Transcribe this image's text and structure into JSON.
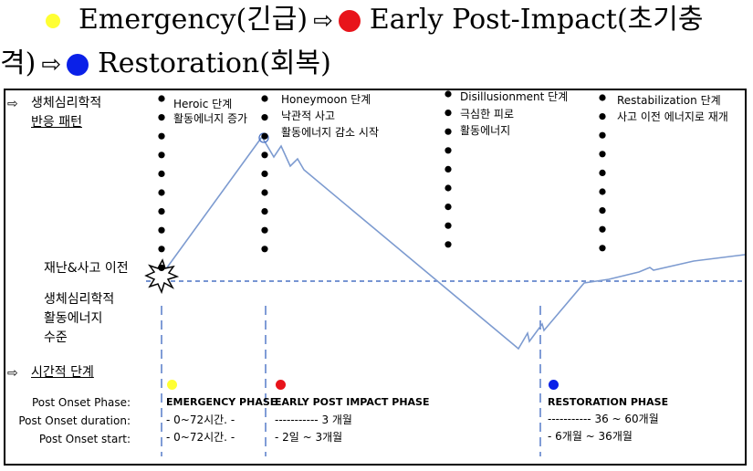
{
  "heading": {
    "line1_a": "Emergency(긴급)",
    "arrow": "⇨",
    "line1_b": "Early Post-Impact(초기충",
    "line2_a": "격)",
    "line2_b": "Restoration(회복)",
    "colors": {
      "emergency": "#ffff33",
      "early": "#e8141b",
      "restoration": "#0a20e8"
    }
  },
  "left_panel": {
    "arrow": "⇨",
    "pattern_line1": "생체심리학적",
    "pattern_line2": "반응 패턴",
    "pre_disaster": "재난&사고 이전",
    "level_line1": "생체심리학적",
    "level_line2": "활동에너지",
    "level_line3": "수준",
    "time_stage": "시간적 단계"
  },
  "phases": [
    {
      "name": "Heroic 단계",
      "desc1": "활동에너지 증가",
      "desc2": ""
    },
    {
      "name": "Honeymoon 단계",
      "desc1": "낙관적 사고",
      "desc2": "활동에너지 감소 시작"
    },
    {
      "name": "Disillusionment 단계",
      "desc1": "극심한 피로",
      "desc2": "활동에너지"
    },
    {
      "name": "Restabilization 단계",
      "desc1": "사고 이전 에너지로 재개",
      "desc2": ""
    }
  ],
  "row_labels": {
    "phase": "Post Onset Phase:",
    "duration": "Post Onset duration:",
    "start": "Post Onset start:"
  },
  "time_phases": {
    "emergency": {
      "title": "EMERGENCY PHASE",
      "duration": "- 0~72시간. -",
      "start": "- 0~72시간. -"
    },
    "early": {
      "title": "EARLY POST IMPACT PHASE",
      "duration": "----------- 3 개월",
      "start": "- 2일 ~ 3개월"
    },
    "restoration": {
      "title": "RESTORATION PHASE",
      "duration": "----------- 36 ~ 60개월",
      "start": "- 6개월 ~ 36개월"
    }
  },
  "line_color": "#7d9bd0",
  "baseline_color": "#4a72c4"
}
